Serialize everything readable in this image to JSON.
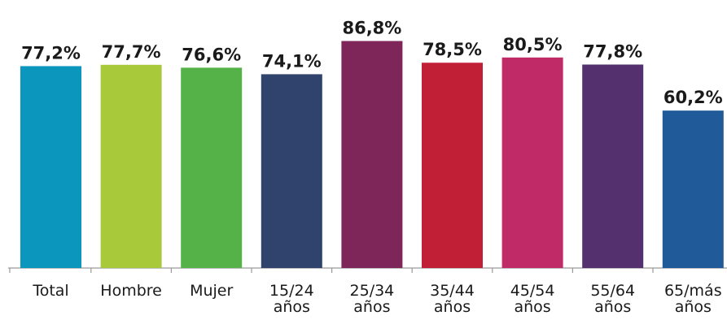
{
  "chart_data": {
    "type": "bar",
    "title": "",
    "xlabel": "",
    "ylabel": "",
    "ylim": [
      0,
      100
    ],
    "grid": false,
    "legend": "none",
    "categories": [
      [
        "Total"
      ],
      [
        "Hombre"
      ],
      [
        "Mujer"
      ],
      [
        "15/24",
        "años"
      ],
      [
        "25/34",
        "años"
      ],
      [
        "35/44",
        "años"
      ],
      [
        "45/54",
        "años"
      ],
      [
        "55/64",
        "años"
      ],
      [
        "65/más",
        "años"
      ]
    ],
    "values": [
      77.2,
      77.7,
      76.6,
      74.1,
      86.8,
      78.5,
      80.5,
      77.8,
      60.2
    ],
    "value_labels": [
      "77,2%",
      "77,7%",
      "76,6%",
      "74,1%",
      "86,8%",
      "78,5%",
      "80,5%",
      "77,8%",
      "60,2%"
    ],
    "colors": [
      "#0a96bd",
      "#a8c93a",
      "#55b248",
      "#2f436c",
      "#7e2559",
      "#c01f35",
      "#c02b67",
      "#54306f",
      "#205a98"
    ]
  }
}
